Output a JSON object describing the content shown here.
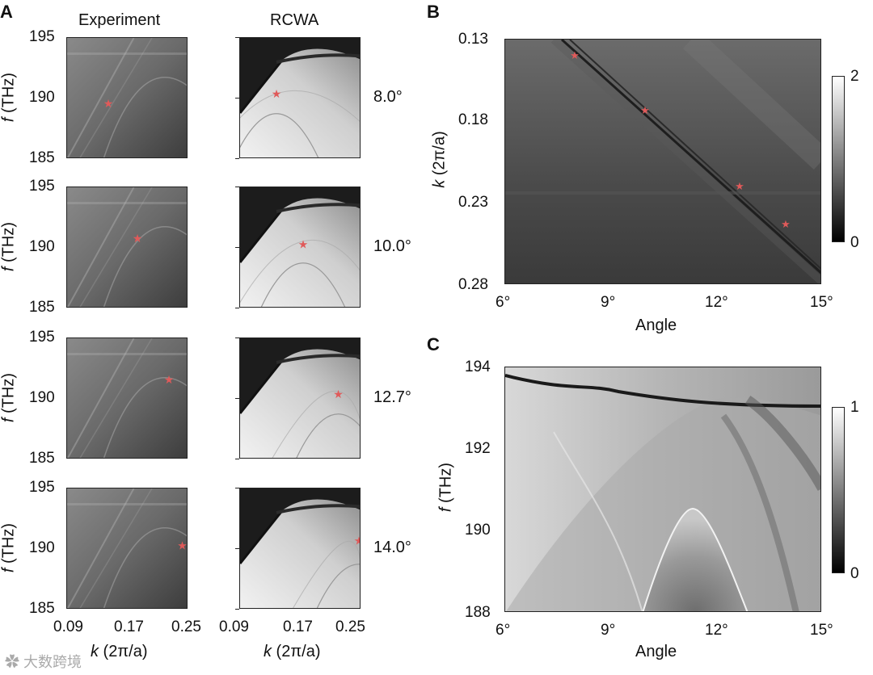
{
  "labels": {
    "A": "A",
    "B": "B",
    "C": "C"
  },
  "panelA": {
    "col_titles": [
      "Experiment",
      "RCWA"
    ],
    "y_ticks": [
      "195",
      "190",
      "185"
    ],
    "y_label_italic": "f",
    "y_label_rest": " (THz)",
    "x_ticks": [
      "0.09",
      "0.17",
      "0.25"
    ],
    "x_label_italic": "k",
    "x_label_rest": " (2π/a)",
    "angles": [
      "8.0°",
      "10.0°",
      "12.7°",
      "14.0°"
    ]
  },
  "panelB": {
    "y_ticks": [
      "0.13",
      "0.18",
      "0.23",
      "0.28"
    ],
    "x_ticks": [
      "6°",
      "9°",
      "12°",
      "15°"
    ],
    "x_label": "Angle",
    "y_label_italic": "k",
    "y_label_rest": " (2π/a)",
    "colorbar": [
      "2",
      "0"
    ]
  },
  "panelC": {
    "y_ticks": [
      "194",
      "192",
      "190",
      "188"
    ],
    "x_ticks": [
      "6°",
      "9°",
      "12°",
      "15°"
    ],
    "x_label": "Angle",
    "y_label_italic": "f",
    "y_label_rest": " (THz)",
    "colorbar": [
      "1",
      "0"
    ]
  },
  "watermark": "大数跨境",
  "colors": {
    "marker": "#e05a5a",
    "axis": "#222222"
  }
}
